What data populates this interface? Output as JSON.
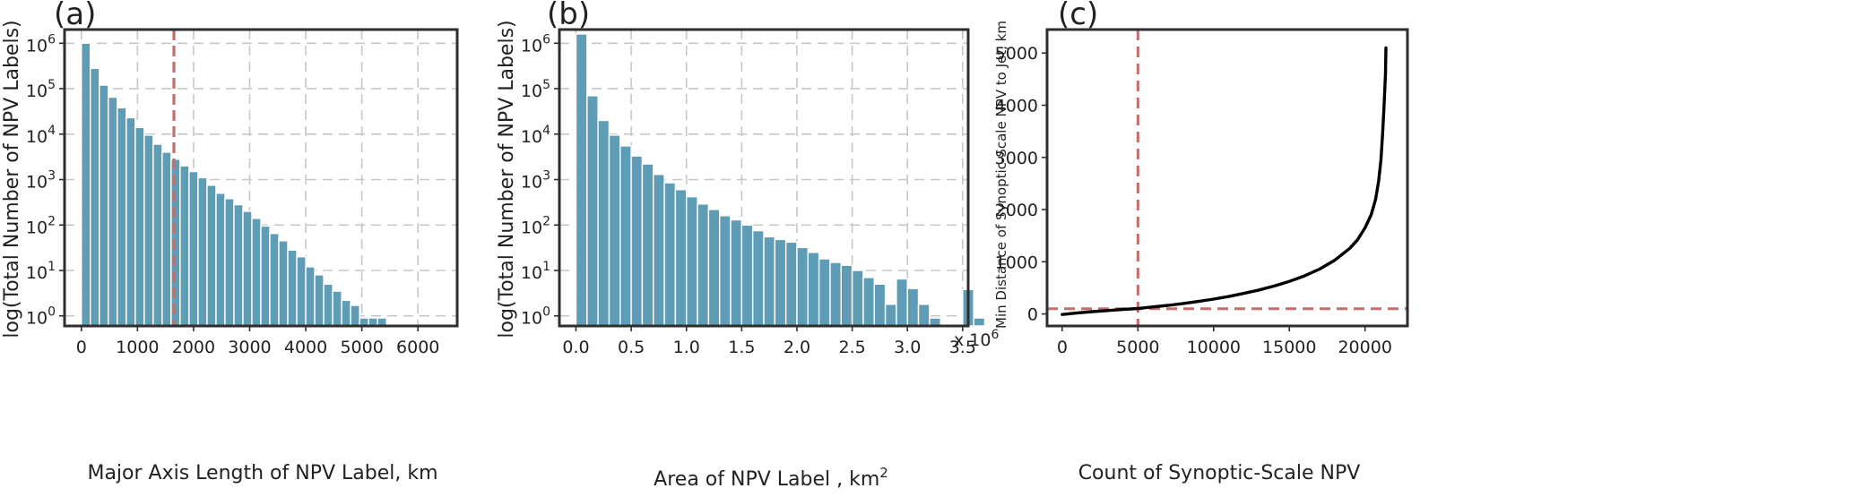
{
  "colors": {
    "bar": "#5f9db6",
    "bar_edge": "#ffffff",
    "ref_line": "#c26e6e",
    "curve": "#000000"
  },
  "chart_data": [
    {
      "type": "bar",
      "panel_label": "(a)",
      "xlabel": "Major Axis Length of NPV Label, km",
      "ylabel": "log(Total Number of NPV Labels)",
      "yscale": "log",
      "xlim": [
        -300,
        6700
      ],
      "ylim": [
        0.6,
        2000000
      ],
      "bin_width": 160,
      "bin_start": 0,
      "xticks": [
        0,
        1000,
        2000,
        3000,
        4000,
        5000,
        6000
      ],
      "xtick_labels": [
        "0",
        "1000",
        "2000",
        "3000",
        "4000",
        "5000",
        "6000"
      ],
      "yticks": [
        1,
        10,
        100,
        1000,
        10000,
        100000,
        1000000
      ],
      "ytick_labels": [
        {
          "base": "10",
          "exp": "0"
        },
        {
          "base": "10",
          "exp": "1"
        },
        {
          "base": "10",
          "exp": "2"
        },
        {
          "base": "10",
          "exp": "3"
        },
        {
          "base": "10",
          "exp": "4"
        },
        {
          "base": "10",
          "exp": "5"
        },
        {
          "base": "10",
          "exp": "6"
        }
      ],
      "grid": true,
      "vline": 1650,
      "values": [
        1000000,
        280000,
        120000,
        65000,
        38000,
        23000,
        14000,
        9500,
        6000,
        4000,
        2800,
        2000,
        1500,
        1100,
        750,
        500,
        380,
        280,
        200,
        140,
        95,
        65,
        45,
        28,
        20,
        12,
        8,
        5,
        3.5,
        2.2,
        1.7,
        0.9,
        0.9,
        0.9
      ]
    },
    {
      "type": "bar",
      "panel_label": "(b)",
      "xlabel": "Area of NPV Label , km",
      "xlabel_sup": "2",
      "ylabel": "log(Total Number of NPV Labels)",
      "yscale": "log",
      "xlim": [
        -0.15,
        3.55
      ],
      "ylim": [
        0.6,
        2000000
      ],
      "bin_width": 0.1,
      "bin_start": 0,
      "xticks": [
        0,
        0.5,
        1.0,
        1.5,
        2.0,
        2.5,
        3.0,
        3.5
      ],
      "xtick_labels": [
        "0.0",
        "0.5",
        "1.0",
        "1.5",
        "2.0",
        "2.5",
        "3.0",
        "3.5"
      ],
      "x_multiplier": {
        "base": "x 10",
        "exp": "6"
      },
      "yticks": [
        1,
        10,
        100,
        1000,
        10000,
        100000,
        1000000
      ],
      "ytick_labels": [
        {
          "base": "10",
          "exp": "0"
        },
        {
          "base": "10",
          "exp": "1"
        },
        {
          "base": "10",
          "exp": "2"
        },
        {
          "base": "10",
          "exp": "3"
        },
        {
          "base": "10",
          "exp": "4"
        },
        {
          "base": "10",
          "exp": "5"
        },
        {
          "base": "10",
          "exp": "6"
        }
      ],
      "grid": true,
      "values": [
        1600000,
        70000,
        20000,
        9500,
        5500,
        3300,
        2200,
        1300,
        850,
        600,
        420,
        290,
        220,
        160,
        130,
        100,
        75,
        55,
        48,
        42,
        32,
        25,
        18,
        15,
        13,
        10,
        7,
        5,
        1.8,
        6.5,
        4,
        1.8,
        0.9,
        0,
        0,
        3.8,
        0.9
      ]
    },
    {
      "type": "line",
      "panel_label": "(c)",
      "xlabel": "Count of Synoptic-Scale NPV",
      "ylabel": "Min  Distance of Synoptic-Scale NPV to Jet, km",
      "xlim": [
        -1000,
        22800
      ],
      "ylim": [
        -230,
        5450
      ],
      "xticks": [
        0,
        5000,
        10000,
        15000,
        20000
      ],
      "xtick_labels": [
        "0",
        "5000",
        "10000",
        "15000",
        "20000"
      ],
      "yticks": [
        0,
        1000,
        2000,
        3000,
        4000,
        5000
      ],
      "ytick_labels": [
        "0",
        "1000",
        "2000",
        "3000",
        "4000",
        "5000"
      ],
      "grid": false,
      "vline": 5000,
      "hline": 100,
      "x": [
        0,
        1000,
        2000,
        3000,
        4000,
        5000,
        6000,
        7000,
        8000,
        9000,
        10000,
        11000,
        12000,
        13000,
        14000,
        15000,
        16000,
        17000,
        18000,
        19000,
        19500,
        20000,
        20400,
        20700,
        20900,
        21050,
        21150,
        21250,
        21350,
        21380
      ],
      "y": [
        -10,
        20,
        45,
        65,
        85,
        105,
        135,
        165,
        200,
        240,
        285,
        335,
        395,
        460,
        535,
        625,
        730,
        860,
        1030,
        1260,
        1420,
        1650,
        1900,
        2200,
        2550,
        2950,
        3400,
        3950,
        4600,
        5100
      ]
    }
  ]
}
